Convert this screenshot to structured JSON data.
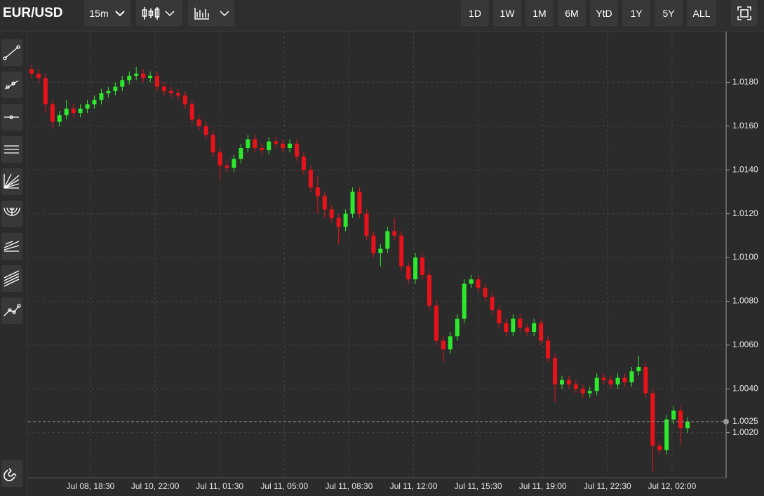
{
  "header": {
    "symbol": "EUR/USD",
    "interval": "15m",
    "ranges": [
      "1D",
      "1W",
      "1M",
      "6M",
      "YtD",
      "1Y",
      "5Y",
      "ALL"
    ]
  },
  "chart_data": {
    "type": "candlestick",
    "up_color": "#2ee82e",
    "down_color": "#e8121a",
    "ylim": [
      1.0,
      1.02
    ],
    "yticks": [
      {
        "value": 1.018,
        "label": "1.0180"
      },
      {
        "value": 1.016,
        "label": "1.0160"
      },
      {
        "value": 1.014,
        "label": "1.0140"
      },
      {
        "value": 1.012,
        "label": "1.0120"
      },
      {
        "value": 1.01,
        "label": "1.0100"
      },
      {
        "value": 1.008,
        "label": "1.0080"
      },
      {
        "value": 1.006,
        "label": "1.0060"
      },
      {
        "value": 1.004,
        "label": "1.0040"
      },
      {
        "value": 1.002,
        "label": "1.0020"
      }
    ],
    "last_price": {
      "value": 1.0025,
      "label": "1.0025"
    },
    "xtick_labels": [
      "Jul 08, 18:30",
      "Jul 10, 22:00",
      "Jul 11, 01:30",
      "Jul 11, 05:00",
      "Jul 11, 08:30",
      "Jul 11, 12:00",
      "Jul 11, 15:30",
      "Jul 11, 19:00",
      "Jul 11, 22:30",
      "Jul 12, 02:00"
    ],
    "grid": true,
    "open": [
      1.0186,
      1.0184,
      1.0182,
      1.017,
      1.0162,
      1.0165,
      1.0168,
      1.0166,
      1.0168,
      1.017,
      1.0172,
      1.0175,
      1.0176,
      1.0178,
      1.0181,
      1.0183,
      1.0184,
      1.0182,
      1.0183,
      1.0178,
      1.0176,
      1.0175,
      1.0174,
      1.017,
      1.0163,
      1.016,
      1.0156,
      1.0148,
      1.0142,
      1.0141,
      1.0145,
      1.015,
      1.0154,
      1.015,
      1.0149,
      1.0153,
      1.0152,
      1.015,
      1.0152,
      1.0146,
      1.014,
      1.0132,
      1.0128,
      1.0122,
      1.0118,
      1.0114,
      1.012,
      1.013,
      1.012,
      1.011,
      1.0102,
      1.0104,
      1.0112,
      1.011,
      1.0096,
      1.009,
      1.01,
      1.0092,
      1.0078,
      1.0062,
      1.0058,
      1.0064,
      1.0072,
      1.0088,
      1.009,
      1.0086,
      1.0082,
      1.0076,
      1.007,
      1.0066,
      1.0072,
      1.0068,
      1.0066,
      1.007,
      1.0062,
      1.0054,
      1.0042,
      1.0044,
      1.0042,
      1.004,
      1.0038,
      1.0039,
      1.0045,
      1.0044,
      1.0042,
      1.0045,
      1.0043,
      1.0048,
      1.005,
      1.0038,
      1.0014,
      1.0012,
      1.0026,
      1.003,
      1.0022
    ],
    "high": [
      1.0188,
      1.0186,
      1.0184,
      1.0172,
      1.0167,
      1.0172,
      1.017,
      1.017,
      1.0172,
      1.0174,
      1.0177,
      1.0178,
      1.018,
      1.0183,
      1.0185,
      1.0187,
      1.0186,
      1.0185,
      1.0185,
      1.018,
      1.0178,
      1.0177,
      1.0176,
      1.0172,
      1.0165,
      1.0162,
      1.0158,
      1.015,
      1.0144,
      1.0147,
      1.0152,
      1.0156,
      1.0156,
      1.0152,
      1.0155,
      1.0155,
      1.0154,
      1.0154,
      1.0154,
      1.0148,
      1.0142,
      1.0137,
      1.013,
      1.0124,
      1.012,
      1.0122,
      1.0132,
      1.0132,
      1.0122,
      1.0112,
      1.0106,
      1.0114,
      1.0118,
      1.0112,
      1.0098,
      1.0102,
      1.0102,
      1.0094,
      1.008,
      1.0064,
      1.0066,
      1.0074,
      1.009,
      1.0092,
      1.0092,
      1.0088,
      1.0084,
      1.0078,
      1.0072,
      1.0074,
      1.0074,
      1.007,
      1.0072,
      1.0072,
      1.0064,
      1.0056,
      1.0046,
      1.0046,
      1.0044,
      1.0042,
      1.0041,
      1.0047,
      1.0047,
      1.0046,
      1.0047,
      1.0047,
      1.005,
      1.0055,
      1.0052,
      1.004,
      1.0016,
      1.0028,
      1.0032,
      1.0032,
      1.0027
    ],
    "low": [
      1.0182,
      1.018,
      1.0166,
      1.0159,
      1.016,
      1.0163,
      1.0164,
      1.0164,
      1.0166,
      1.0168,
      1.017,
      1.0173,
      1.0174,
      1.0176,
      1.0179,
      1.0181,
      1.018,
      1.018,
      1.0176,
      1.0174,
      1.0173,
      1.0172,
      1.0168,
      1.0161,
      1.0158,
      1.0154,
      1.0146,
      1.0135,
      1.0139,
      1.0139,
      1.0143,
      1.0148,
      1.0148,
      1.0147,
      1.0147,
      1.015,
      1.0148,
      1.0148,
      1.0144,
      1.0138,
      1.013,
      1.012,
      1.0118,
      1.0116,
      1.0106,
      1.0112,
      1.0118,
      1.0118,
      1.0108,
      1.01,
      1.0096,
      1.0102,
      1.0108,
      1.0094,
      1.0088,
      1.0088,
      1.009,
      1.0076,
      1.006,
      1.0052,
      1.0056,
      1.0062,
      1.007,
      1.0086,
      1.0084,
      1.008,
      1.0074,
      1.0068,
      1.0064,
      1.0064,
      1.0066,
      1.0064,
      1.0064,
      1.006,
      1.0052,
      1.0034,
      1.004,
      1.004,
      1.0038,
      1.0036,
      1.0036,
      1.0037,
      1.0042,
      1.004,
      1.004,
      1.0041,
      1.0041,
      1.0046,
      1.0036,
      1.0002,
      1.001,
      1.001,
      1.0024,
      1.0014,
      1.002
    ],
    "close": [
      1.0184,
      1.0182,
      1.017,
      1.0162,
      1.0165,
      1.0168,
      1.0166,
      1.0168,
      1.017,
      1.0172,
      1.0175,
      1.0176,
      1.0178,
      1.0181,
      1.0183,
      1.0184,
      1.0182,
      1.0183,
      1.0178,
      1.0176,
      1.0175,
      1.0174,
      1.017,
      1.0163,
      1.016,
      1.0156,
      1.0148,
      1.0142,
      1.0141,
      1.0145,
      1.015,
      1.0154,
      1.015,
      1.0149,
      1.0153,
      1.0152,
      1.015,
      1.0152,
      1.0146,
      1.014,
      1.0132,
      1.0128,
      1.0122,
      1.0118,
      1.0114,
      1.012,
      1.013,
      1.012,
      1.011,
      1.0102,
      1.0104,
      1.0112,
      1.011,
      1.0096,
      1.009,
      1.01,
      1.0092,
      1.0078,
      1.0062,
      1.0058,
      1.0064,
      1.0072,
      1.0088,
      1.009,
      1.0086,
      1.0082,
      1.0076,
      1.007,
      1.0066,
      1.0072,
      1.0068,
      1.0066,
      1.007,
      1.0062,
      1.0054,
      1.0042,
      1.0044,
      1.0042,
      1.004,
      1.0038,
      1.0039,
      1.0045,
      1.0044,
      1.0042,
      1.0045,
      1.0043,
      1.0048,
      1.005,
      1.0038,
      1.0014,
      1.0012,
      1.0026,
      1.003,
      1.0022,
      1.0025
    ]
  }
}
